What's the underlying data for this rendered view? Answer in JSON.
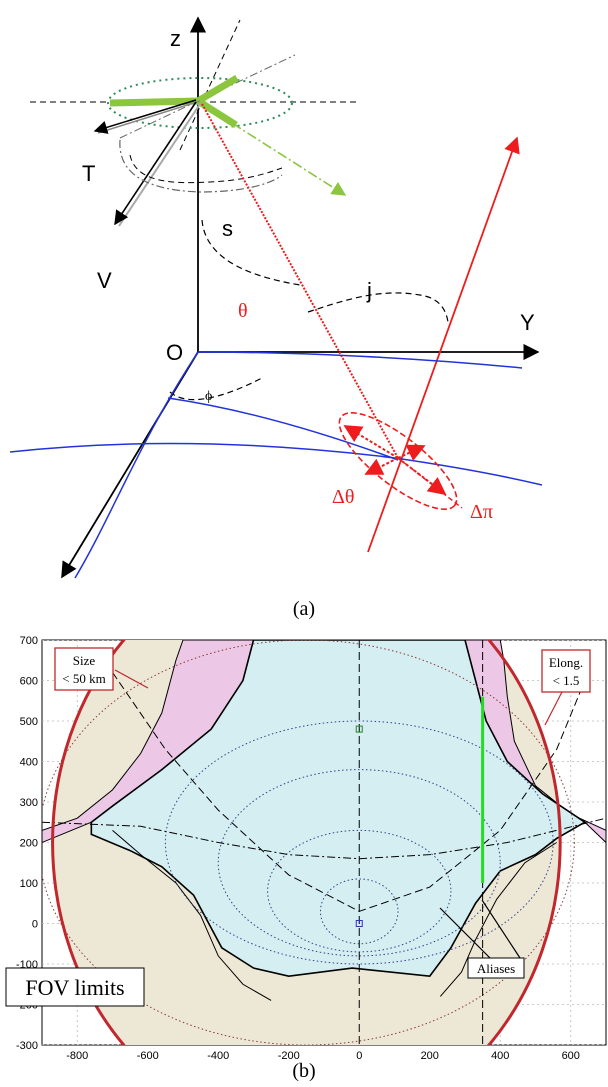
{
  "figure_a": {
    "caption": "(a)",
    "axis_labels": {
      "z": "z",
      "y": "Y",
      "origin": "O"
    },
    "labels": {
      "T": "T",
      "V": "V",
      "s": "s",
      "j": "j",
      "theta": "θ",
      "phi": "ϕ",
      "delta_theta": "Δθ",
      "delta_pi": "Δπ"
    },
    "colors": {
      "green": "#8cc63f",
      "red": "#ee1c1c",
      "blue": "#2233dd",
      "black": "#000000"
    }
  },
  "figure_b": {
    "caption": "(b)",
    "callouts": {
      "size_line1": "Size",
      "size_line2": "< 50 km",
      "elong_line1": "Elong.",
      "elong_line2": "< 1.5",
      "aliases": "Aliases",
      "fov": "FOV limits"
    },
    "x_ticks": [
      "-800",
      "-600",
      "-400",
      "-200",
      "0",
      "200",
      "400",
      "600"
    ],
    "y_ticks": [
      "700",
      "600",
      "500",
      "400",
      "300",
      "200",
      "100",
      "0",
      "-100",
      "-200",
      "-300"
    ],
    "chart_data": {
      "type": "scatter",
      "xlim": [
        -900,
        700
      ],
      "ylim": [
        -300,
        700
      ],
      "x_ticks": [
        -800,
        -600,
        -400,
        -200,
        0,
        200,
        400,
        600
      ],
      "y_ticks": [
        -300,
        -200,
        -100,
        0,
        100,
        200,
        300,
        400,
        500,
        600,
        700
      ],
      "grid": true,
      "fov_circle": {
        "center": [
          -150,
          200
        ],
        "radius": 720
      },
      "green_segment": {
        "x": 350,
        "y_from": 100,
        "y_to": 560
      },
      "markers": [
        {
          "x": 0,
          "y": 480,
          "color": "#228822"
        },
        {
          "x": 0,
          "y": 0,
          "color": "#3333aa"
        }
      ],
      "colors": {
        "fov": "#c0282d",
        "pink": "#ecc7e6",
        "cyan": "#d4eef2",
        "beige": "#ede8d6",
        "green": "#22dd22"
      }
    }
  }
}
